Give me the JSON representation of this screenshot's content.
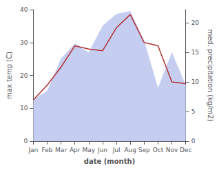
{
  "chart_data": {
    "type": "line",
    "xlabel": "date (month)",
    "ylabel": "max temp (C)",
    "y2label": "med. precipitation (kg/m2)",
    "categories": [
      "Jan",
      "Feb",
      "Mar",
      "Apr",
      "May",
      "Jun",
      "Jul",
      "Aug",
      "Sep",
      "Oct",
      "Nov",
      "Dec"
    ],
    "series": [
      {
        "type": "area",
        "color": "#c5cef0",
        "axis": "y2",
        "values": [
          7.0,
          8.5,
          14.0,
          16.5,
          15.0,
          19.5,
          21.5,
          22.0,
          17.0,
          9.0,
          15.0,
          9.5
        ]
      },
      {
        "type": "line",
        "color": "#b03030",
        "values": [
          12.5,
          17.0,
          22.5,
          29.0,
          28.0,
          27.5,
          34.5,
          38.5,
          30.0,
          29.0,
          18.0,
          17.5
        ]
      }
    ],
    "ylim": [
      0,
      40
    ],
    "yticks": [
      0,
      10,
      20,
      30,
      40
    ],
    "y2lim": [
      0,
      22.22
    ],
    "y2ticks": [
      0,
      5,
      10,
      15,
      20
    ],
    "grid": false
  }
}
